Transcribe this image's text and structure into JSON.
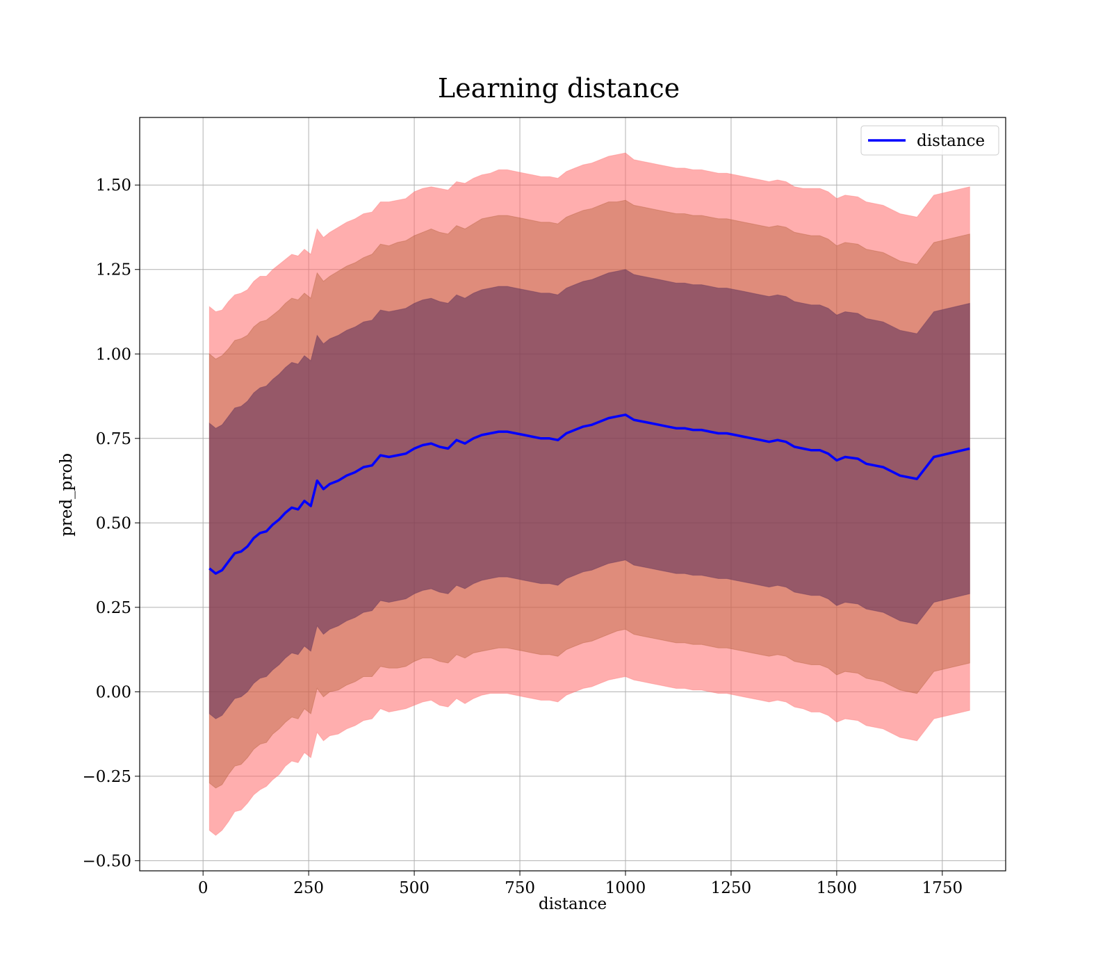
{
  "chart_data": {
    "type": "line",
    "title": "Learning distance",
    "xlabel": "distance",
    "ylabel": "pred_prob",
    "xlim": [
      -150,
      1900
    ],
    "ylim": [
      -0.53,
      1.7
    ],
    "xticks": [
      0,
      250,
      500,
      750,
      1000,
      1250,
      1500,
      1750
    ],
    "yticks": [
      -0.5,
      -0.25,
      0.0,
      0.25,
      0.5,
      0.75,
      1.0,
      1.25,
      1.5
    ],
    "ytick_labels": [
      "−0.50",
      "−0.25",
      "0.00",
      "0.25",
      "0.50",
      "0.75",
      "1.00",
      "1.25",
      "1.50"
    ],
    "grid": true,
    "legend_position": "top-right",
    "series": [
      {
        "name": "distance",
        "color": "#0000ff",
        "x": [
          15,
          30,
          45,
          60,
          75,
          90,
          105,
          120,
          135,
          150,
          165,
          180,
          195,
          210,
          225,
          240,
          255,
          270,
          285,
          300,
          320,
          340,
          360,
          380,
          400,
          420,
          440,
          460,
          480,
          500,
          520,
          540,
          560,
          580,
          600,
          620,
          640,
          660,
          680,
          700,
          720,
          740,
          760,
          780,
          800,
          820,
          840,
          860,
          880,
          900,
          920,
          940,
          960,
          980,
          1000,
          1020,
          1040,
          1060,
          1080,
          1100,
          1120,
          1140,
          1160,
          1180,
          1200,
          1220,
          1240,
          1260,
          1280,
          1300,
          1320,
          1340,
          1360,
          1380,
          1400,
          1420,
          1440,
          1460,
          1480,
          1500,
          1520,
          1550,
          1570,
          1610,
          1650,
          1690,
          1730,
          1815
        ],
        "values": [
          0.365,
          0.35,
          0.36,
          0.385,
          0.41,
          0.415,
          0.43,
          0.455,
          0.47,
          0.475,
          0.495,
          0.51,
          0.53,
          0.545,
          0.54,
          0.565,
          0.55,
          0.625,
          0.6,
          0.615,
          0.625,
          0.64,
          0.65,
          0.665,
          0.67,
          0.7,
          0.695,
          0.7,
          0.705,
          0.72,
          0.73,
          0.735,
          0.725,
          0.72,
          0.745,
          0.735,
          0.75,
          0.76,
          0.765,
          0.77,
          0.77,
          0.765,
          0.76,
          0.755,
          0.75,
          0.75,
          0.745,
          0.765,
          0.775,
          0.785,
          0.79,
          0.8,
          0.81,
          0.815,
          0.82,
          0.805,
          0.8,
          0.795,
          0.79,
          0.785,
          0.78,
          0.78,
          0.775,
          0.775,
          0.77,
          0.765,
          0.765,
          0.76,
          0.755,
          0.75,
          0.745,
          0.74,
          0.745,
          0.74,
          0.725,
          0.72,
          0.715,
          0.715,
          0.705,
          0.685,
          0.695,
          0.69,
          0.675,
          0.665,
          0.64,
          0.63,
          0.695,
          0.72
        ]
      }
    ],
    "bands": [
      {
        "level": "outer",
        "color": "#ff6b6b",
        "opacity": 0.55,
        "half_width": [
          0.775,
          0.775,
          0.77,
          0.77,
          0.765,
          0.765,
          0.76,
          0.76,
          0.76,
          0.755,
          0.755,
          0.755,
          0.75,
          0.75,
          0.75,
          0.745,
          0.745,
          0.745,
          0.745,
          0.745,
          0.75,
          0.75,
          0.75,
          0.75,
          0.75,
          0.75,
          0.755,
          0.755,
          0.755,
          0.76,
          0.76,
          0.76,
          0.765,
          0.765,
          0.765,
          0.77,
          0.77,
          0.77,
          0.77,
          0.775,
          0.775,
          0.775,
          0.775,
          0.775,
          0.775,
          0.775,
          0.775,
          0.775,
          0.775,
          0.775,
          0.775,
          0.775,
          0.775,
          0.775,
          0.775,
          0.77,
          0.77,
          0.77,
          0.77,
          0.77,
          0.77,
          0.77,
          0.77,
          0.77,
          0.77,
          0.77,
          0.77,
          0.77,
          0.77,
          0.77,
          0.77,
          0.77,
          0.77,
          0.77,
          0.77,
          0.77,
          0.775,
          0.775,
          0.775,
          0.775,
          0.775,
          0.775,
          0.775,
          0.775,
          0.775,
          0.775,
          0.775,
          0.775
        ]
      },
      {
        "level": "middle",
        "color": "#b05a30",
        "opacity": 0.4,
        "half_width": [
          0.635,
          0.635,
          0.635,
          0.63,
          0.63,
          0.63,
          0.625,
          0.625,
          0.625,
          0.625,
          0.62,
          0.62,
          0.62,
          0.62,
          0.62,
          0.615,
          0.615,
          0.615,
          0.615,
          0.615,
          0.62,
          0.62,
          0.62,
          0.62,
          0.625,
          0.625,
          0.625,
          0.63,
          0.63,
          0.63,
          0.63,
          0.635,
          0.635,
          0.635,
          0.635,
          0.635,
          0.635,
          0.64,
          0.64,
          0.64,
          0.64,
          0.64,
          0.64,
          0.64,
          0.64,
          0.64,
          0.64,
          0.64,
          0.64,
          0.64,
          0.64,
          0.64,
          0.64,
          0.635,
          0.635,
          0.635,
          0.635,
          0.635,
          0.635,
          0.635,
          0.635,
          0.635,
          0.635,
          0.635,
          0.635,
          0.635,
          0.635,
          0.635,
          0.635,
          0.635,
          0.635,
          0.635,
          0.635,
          0.635,
          0.635,
          0.635,
          0.635,
          0.635,
          0.635,
          0.635,
          0.635,
          0.635,
          0.635,
          0.635,
          0.635,
          0.635,
          0.635,
          0.635
        ]
      },
      {
        "level": "inner",
        "color": "#5a2d5a",
        "opacity": 0.55,
        "half_width": [
          0.43,
          0.43,
          0.43,
          0.43,
          0.43,
          0.43,
          0.43,
          0.43,
          0.43,
          0.43,
          0.43,
          0.43,
          0.43,
          0.43,
          0.43,
          0.43,
          0.43,
          0.43,
          0.43,
          0.43,
          0.43,
          0.43,
          0.43,
          0.43,
          0.43,
          0.43,
          0.43,
          0.43,
          0.43,
          0.43,
          0.43,
          0.43,
          0.43,
          0.43,
          0.43,
          0.43,
          0.43,
          0.43,
          0.43,
          0.43,
          0.43,
          0.43,
          0.43,
          0.43,
          0.43,
          0.43,
          0.43,
          0.43,
          0.43,
          0.43,
          0.43,
          0.43,
          0.43,
          0.43,
          0.43,
          0.43,
          0.43,
          0.43,
          0.43,
          0.43,
          0.43,
          0.43,
          0.43,
          0.43,
          0.43,
          0.43,
          0.43,
          0.43,
          0.43,
          0.43,
          0.43,
          0.43,
          0.43,
          0.43,
          0.43,
          0.43,
          0.43,
          0.43,
          0.43,
          0.43,
          0.43,
          0.43,
          0.43,
          0.43,
          0.43,
          0.43,
          0.43,
          0.43
        ]
      }
    ]
  }
}
